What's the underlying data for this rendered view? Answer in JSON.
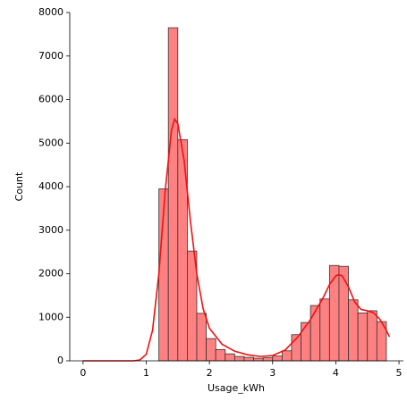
{
  "chart_data": {
    "type": "histogram",
    "xlabel": "Usage_kWh",
    "ylabel": "Count",
    "bins": [
      1.2,
      1.35,
      1.5,
      1.65,
      1.8,
      1.95,
      2.1,
      2.25,
      2.4,
      2.55,
      2.7,
      2.85,
      3.0,
      3.15,
      3.3,
      3.45,
      3.6,
      3.75,
      3.9,
      4.05,
      4.2,
      4.35,
      4.5,
      4.65,
      4.8
    ],
    "values": [
      3950,
      7650,
      5080,
      2520,
      1090,
      510,
      260,
      160,
      100,
      80,
      60,
      70,
      110,
      230,
      600,
      880,
      1270,
      1420,
      2190,
      2170,
      1400,
      1100,
      1150,
      900
    ],
    "color": "#ff8080",
    "edgecolor": "#333333",
    "kde": {
      "color": "#ee1111",
      "x": [
        0,
        0.8,
        0.9,
        1.0,
        1.1,
        1.2,
        1.3,
        1.4,
        1.45,
        1.5,
        1.6,
        1.7,
        1.8,
        1.9,
        2.0,
        2.2,
        2.4,
        2.6,
        2.8,
        3.0,
        3.2,
        3.4,
        3.6,
        3.8,
        3.9,
        4.0,
        4.05,
        4.1,
        4.2,
        4.3,
        4.4,
        4.5,
        4.6,
        4.7,
        4.8,
        4.85
      ],
      "values": [
        0,
        0,
        20,
        150,
        700,
        2000,
        3900,
        5300,
        5550,
        5450,
        4600,
        3200,
        2000,
        1200,
        750,
        380,
        220,
        140,
        100,
        120,
        250,
        550,
        950,
        1450,
        1750,
        1950,
        1980,
        1950,
        1700,
        1350,
        1180,
        1150,
        1100,
        950,
        700,
        550
      ]
    },
    "xlim": [
      -0.21,
      5.07
    ],
    "ylim": [
      0,
      8000
    ],
    "xticks": [
      0,
      1,
      2,
      3,
      4,
      5
    ],
    "yticks": [
      0,
      1000,
      2000,
      3000,
      4000,
      5000,
      6000,
      7000,
      8000
    ]
  }
}
